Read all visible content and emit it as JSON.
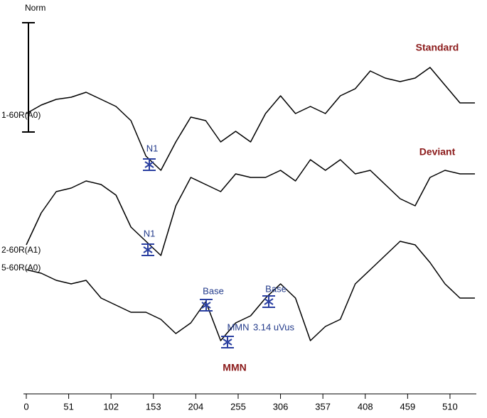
{
  "chart_data": {
    "type": "line",
    "title": "Norm",
    "x": [
      0,
      18,
      36,
      54,
      72,
      90,
      108,
      126,
      144,
      162,
      180,
      198,
      216,
      234,
      252,
      270,
      288,
      306,
      324,
      342,
      360,
      378,
      396,
      414,
      432,
      450,
      468,
      486,
      504,
      522,
      540
    ],
    "xlim": [
      0,
      540
    ],
    "xticks": [
      0,
      51,
      102,
      153,
      204,
      255,
      306,
      357,
      408,
      459,
      510
    ],
    "series": [
      {
        "name": "Standard",
        "channel": "1-60R(A0)",
        "color": "#000000",
        "values": [
          0,
          12,
          20,
          23,
          30,
          20,
          10,
          -10,
          -60,
          -80,
          -40,
          -5,
          -10,
          -40,
          -25,
          -40,
          0,
          25,
          0,
          10,
          0,
          25,
          35,
          60,
          50,
          45,
          50,
          65,
          40,
          15,
          15
        ]
      },
      {
        "name": "Deviant",
        "channel": "2-60R(A1)",
        "color": "#000000",
        "values": [
          0,
          45,
          75,
          80,
          90,
          85,
          70,
          25,
          5,
          -15,
          55,
          95,
          85,
          75,
          100,
          95,
          95,
          105,
          90,
          120,
          105,
          120,
          100,
          105,
          85,
          65,
          55,
          95,
          105,
          100,
          100
        ]
      },
      {
        "name": "MMN",
        "channel": "5-60R(A0)",
        "color": "#000000",
        "values": [
          0,
          -5,
          -15,
          -20,
          -15,
          -40,
          -50,
          -60,
          -60,
          -70,
          -90,
          -75,
          -45,
          -100,
          -75,
          -65,
          -40,
          -20,
          -40,
          -100,
          -80,
          -70,
          -20,
          0,
          20,
          40,
          35,
          10,
          -20,
          -40,
          -40
        ]
      }
    ],
    "annotations": [
      "N1",
      "N1",
      "Base",
      "Base",
      "MMN",
      "3.14 uVus"
    ]
  }
}
